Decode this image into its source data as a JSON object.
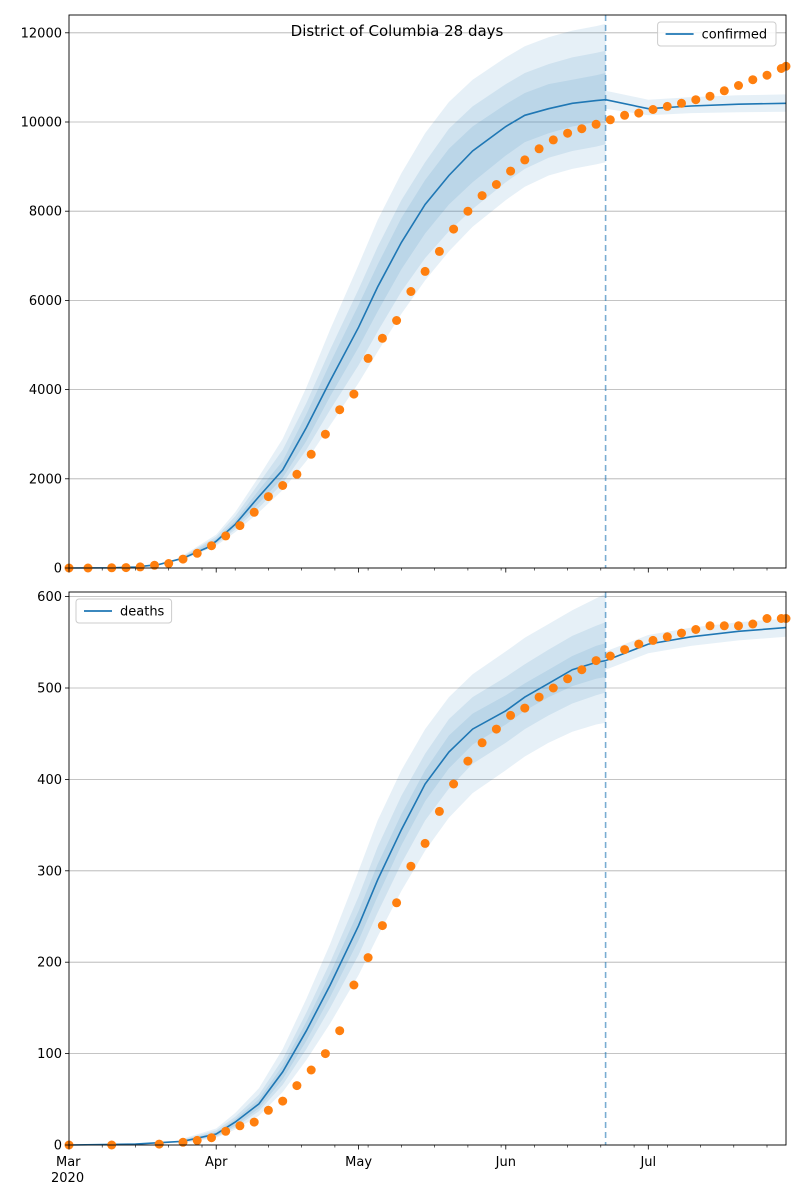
{
  "figure": {
    "suptitle": "District of Columbia 28 days"
  },
  "colors": {
    "model_line": "#1f77b4",
    "observed_points": "#ff7f0e",
    "band_fill": "#1f77b4",
    "grid": "#b0b0b0",
    "forecast_start_line": "#1f77b4"
  },
  "chart_data": [
    {
      "type": "line",
      "name": "confirmed-panel",
      "legend": {
        "entries": [
          "confirmed"
        ],
        "placement": "top-right"
      },
      "x_range": [
        "2020-03-01",
        "2020-07-30"
      ],
      "ylim": [
        0,
        12400
      ],
      "yticks": [
        0,
        2000,
        4000,
        6000,
        8000,
        10000,
        12000
      ],
      "grid": "horizontal",
      "forecast_start": "2020-06-22",
      "model_line": {
        "name": "confirmed",
        "x": [
          "2020-03-01",
          "2020-03-10",
          "2020-03-15",
          "2020-03-20",
          "2020-03-25",
          "2020-03-30",
          "2020-04-01",
          "2020-04-05",
          "2020-04-10",
          "2020-04-15",
          "2020-04-20",
          "2020-04-25",
          "2020-05-01",
          "2020-05-05",
          "2020-05-10",
          "2020-05-15",
          "2020-05-20",
          "2020-05-25",
          "2020-06-01",
          "2020-06-05",
          "2020-06-10",
          "2020-06-15",
          "2020-06-20",
          "2020-06-22",
          "2020-07-01",
          "2020-07-10",
          "2020-07-20",
          "2020-07-30"
        ],
        "y": [
          0,
          5,
          20,
          80,
          220,
          450,
          600,
          980,
          1600,
          2200,
          3150,
          4200,
          5400,
          6300,
          7300,
          8150,
          8800,
          9350,
          9900,
          10150,
          10300,
          10420,
          10480,
          10500,
          10300,
          10360,
          10400,
          10420
        ]
      },
      "bands": [
        {
          "x": [
            "2020-03-25",
            "2020-04-01",
            "2020-04-05",
            "2020-04-10",
            "2020-04-15",
            "2020-04-20",
            "2020-04-25",
            "2020-05-01",
            "2020-05-05",
            "2020-05-10",
            "2020-05-15",
            "2020-05-20",
            "2020-05-25",
            "2020-06-01",
            "2020-06-05",
            "2020-06-10",
            "2020-06-15",
            "2020-06-20",
            "2020-06-22"
          ],
          "lower": [
            180,
            500,
            800,
            1250,
            1750,
            2400,
            3200,
            4150,
            4850,
            5700,
            6450,
            7100,
            7650,
            8250,
            8550,
            8800,
            8950,
            9050,
            9100
          ],
          "upper": [
            280,
            750,
            1250,
            2050,
            2900,
            4050,
            5350,
            6800,
            7800,
            8850,
            9750,
            10450,
            10950,
            11450,
            11700,
            11900,
            12050,
            12150,
            12200
          ]
        },
        {
          "x": [
            "2020-03-25",
            "2020-04-01",
            "2020-04-05",
            "2020-04-10",
            "2020-04-15",
            "2020-04-20",
            "2020-04-25",
            "2020-05-01",
            "2020-05-05",
            "2020-05-10",
            "2020-05-15",
            "2020-05-20",
            "2020-05-25",
            "2020-06-01",
            "2020-06-05",
            "2020-06-10",
            "2020-06-15",
            "2020-06-20",
            "2020-06-22"
          ],
          "lower": [
            195,
            530,
            860,
            1350,
            1900,
            2650,
            3550,
            4550,
            5300,
            6200,
            6950,
            7550,
            8050,
            8650,
            8950,
            9200,
            9350,
            9450,
            9500
          ],
          "upper": [
            260,
            700,
            1160,
            1900,
            2650,
            3700,
            4900,
            6250,
            7200,
            8250,
            9100,
            9850,
            10350,
            10850,
            11100,
            11300,
            11450,
            11550,
            11600
          ]
        },
        {
          "x": [
            "2020-03-25",
            "2020-04-01",
            "2020-04-05",
            "2020-04-10",
            "2020-04-15",
            "2020-04-20",
            "2020-04-25",
            "2020-05-01",
            "2020-05-05",
            "2020-05-10",
            "2020-05-15",
            "2020-05-20",
            "2020-05-25",
            "2020-06-01",
            "2020-06-05",
            "2020-06-10",
            "2020-06-15",
            "2020-06-20",
            "2020-06-22"
          ],
          "lower": [
            205,
            560,
            910,
            1450,
            2020,
            2850,
            3850,
            4950,
            5750,
            6700,
            7500,
            8150,
            8650,
            9250,
            9550,
            9750,
            9900,
            10000,
            10050
          ],
          "upper": [
            240,
            650,
            1060,
            1750,
            2400,
            3450,
            4600,
            5900,
            6800,
            7850,
            8700,
            9400,
            9900,
            10400,
            10650,
            10850,
            10950,
            11050,
            11100
          ]
        },
        {
          "x": [
            "2020-06-22",
            "2020-07-01",
            "2020-07-10",
            "2020-07-20",
            "2020-07-30"
          ],
          "lower": [
            10300,
            10150,
            10200,
            10220,
            10230
          ],
          "upper": [
            10700,
            10500,
            10560,
            10600,
            10620
          ]
        }
      ],
      "observed": {
        "x": [
          "2020-03-01",
          "2020-03-05",
          "2020-03-10",
          "2020-03-13",
          "2020-03-16",
          "2020-03-19",
          "2020-03-22",
          "2020-03-25",
          "2020-03-28",
          "2020-03-31",
          "2020-04-03",
          "2020-04-06",
          "2020-04-09",
          "2020-04-12",
          "2020-04-15",
          "2020-04-18",
          "2020-04-21",
          "2020-04-24",
          "2020-04-27",
          "2020-04-30",
          "2020-05-03",
          "2020-05-06",
          "2020-05-09",
          "2020-05-12",
          "2020-05-15",
          "2020-05-18",
          "2020-05-21",
          "2020-05-24",
          "2020-05-27",
          "2020-05-30",
          "2020-06-02",
          "2020-06-05",
          "2020-06-08",
          "2020-06-11",
          "2020-06-14",
          "2020-06-17",
          "2020-06-20",
          "2020-06-23",
          "2020-06-26",
          "2020-06-29",
          "2020-07-02",
          "2020-07-05",
          "2020-07-08",
          "2020-07-11",
          "2020-07-14",
          "2020-07-17",
          "2020-07-20",
          "2020-07-23",
          "2020-07-26",
          "2020-07-29",
          "2020-07-30"
        ],
        "y": [
          0,
          0,
          5,
          10,
          25,
          60,
          100,
          200,
          330,
          500,
          720,
          950,
          1250,
          1600,
          1850,
          2100,
          2550,
          3000,
          3550,
          3900,
          4700,
          5150,
          5550,
          6200,
          6650,
          7100,
          7600,
          8000,
          8350,
          8600,
          8900,
          9150,
          9400,
          9600,
          9750,
          9850,
          9950,
          10050,
          10150,
          10200,
          10280,
          10350,
          10420,
          10500,
          10580,
          10700,
          10820,
          10950,
          11050,
          11200,
          11250
        ]
      }
    },
    {
      "type": "line",
      "name": "deaths-panel",
      "legend": {
        "entries": [
          "deaths"
        ],
        "placement": "top-left"
      },
      "x_range": [
        "2020-03-01",
        "2020-07-30"
      ],
      "xticks": [
        "Mar",
        "Apr",
        "May",
        "Jun",
        "Jul"
      ],
      "x_year_label": "2020",
      "ylim": [
        0,
        605
      ],
      "yticks": [
        0,
        100,
        200,
        300,
        400,
        500,
        600
      ],
      "grid": "horizontal",
      "forecast_start": "2020-06-22",
      "model_line": {
        "name": "deaths",
        "x": [
          "2020-03-01",
          "2020-03-15",
          "2020-03-25",
          "2020-04-01",
          "2020-04-05",
          "2020-04-10",
          "2020-04-15",
          "2020-04-20",
          "2020-04-25",
          "2020-05-01",
          "2020-05-05",
          "2020-05-10",
          "2020-05-15",
          "2020-05-20",
          "2020-05-25",
          "2020-06-01",
          "2020-06-05",
          "2020-06-10",
          "2020-06-15",
          "2020-06-20",
          "2020-06-22",
          "2020-07-01",
          "2020-07-10",
          "2020-07-20",
          "2020-07-30"
        ],
        "y": [
          0,
          1,
          4,
          12,
          25,
          45,
          80,
          125,
          175,
          240,
          290,
          345,
          395,
          430,
          455,
          475,
          490,
          505,
          520,
          528,
          530,
          548,
          556,
          562,
          566
        ]
      },
      "bands": [
        {
          "x": [
            "2020-03-25",
            "2020-04-01",
            "2020-04-05",
            "2020-04-10",
            "2020-04-15",
            "2020-04-20",
            "2020-04-25",
            "2020-05-01",
            "2020-05-05",
            "2020-05-10",
            "2020-05-15",
            "2020-05-20",
            "2020-05-25",
            "2020-06-01",
            "2020-06-05",
            "2020-06-10",
            "2020-06-15",
            "2020-06-20",
            "2020-06-22"
          ],
          "lower": [
            2,
            8,
            17,
            32,
            58,
            93,
            133,
            186,
            228,
            278,
            322,
            358,
            385,
            410,
            425,
            440,
            452,
            460,
            462
          ],
          "upper": [
            7,
            18,
            35,
            62,
            105,
            160,
            220,
            300,
            355,
            410,
            455,
            490,
            515,
            540,
            555,
            570,
            585,
            598,
            603
          ]
        },
        {
          "x": [
            "2020-03-25",
            "2020-04-01",
            "2020-04-05",
            "2020-04-10",
            "2020-04-15",
            "2020-04-20",
            "2020-04-25",
            "2020-05-01",
            "2020-05-05",
            "2020-05-10",
            "2020-05-15",
            "2020-05-20",
            "2020-05-25",
            "2020-06-01",
            "2020-06-05",
            "2020-06-10",
            "2020-06-15",
            "2020-06-20",
            "2020-06-22"
          ],
          "lower": [
            3,
            9,
            19,
            37,
            66,
            105,
            150,
            208,
            254,
            308,
            355,
            390,
            417,
            440,
            455,
            470,
            483,
            492,
            495
          ],
          "upper": [
            6,
            16,
            31,
            55,
            94,
            145,
            200,
            272,
            326,
            382,
            428,
            466,
            490,
            512,
            526,
            542,
            557,
            568,
            572
          ]
        },
        {
          "x": [
            "2020-03-25",
            "2020-04-01",
            "2020-04-05",
            "2020-04-10",
            "2020-04-15",
            "2020-04-20",
            "2020-04-25",
            "2020-05-01",
            "2020-05-05",
            "2020-05-10",
            "2020-05-15",
            "2020-05-20",
            "2020-05-25",
            "2020-06-01",
            "2020-06-05",
            "2020-06-10",
            "2020-06-15",
            "2020-06-20",
            "2020-06-22"
          ],
          "lower": [
            3.5,
            10,
            21,
            40,
            72,
            114,
            162,
            224,
            272,
            328,
            376,
            412,
            438,
            460,
            475,
            490,
            502,
            510,
            512
          ],
          "upper": [
            5,
            14,
            28,
            50,
            87,
            135,
            188,
            256,
            307,
            362,
            410,
            448,
            472,
            492,
            505,
            520,
            535,
            546,
            549
          ]
        },
        {
          "x": [
            "2020-06-22",
            "2020-07-01",
            "2020-07-10",
            "2020-07-20",
            "2020-07-30"
          ],
          "lower": [
            520,
            538,
            546,
            552,
            556
          ],
          "upper": [
            540,
            558,
            566,
            572,
            576
          ]
        }
      ],
      "observed": {
        "x": [
          "2020-03-01",
          "2020-03-10",
          "2020-03-20",
          "2020-03-25",
          "2020-03-28",
          "2020-03-31",
          "2020-04-03",
          "2020-04-06",
          "2020-04-09",
          "2020-04-12",
          "2020-04-15",
          "2020-04-18",
          "2020-04-21",
          "2020-04-24",
          "2020-04-27",
          "2020-04-30",
          "2020-05-03",
          "2020-05-06",
          "2020-05-09",
          "2020-05-12",
          "2020-05-15",
          "2020-05-18",
          "2020-05-21",
          "2020-05-24",
          "2020-05-27",
          "2020-05-30",
          "2020-06-02",
          "2020-06-05",
          "2020-06-08",
          "2020-06-11",
          "2020-06-14",
          "2020-06-17",
          "2020-06-20",
          "2020-06-23",
          "2020-06-26",
          "2020-06-29",
          "2020-07-02",
          "2020-07-05",
          "2020-07-08",
          "2020-07-11",
          "2020-07-14",
          "2020-07-17",
          "2020-07-20",
          "2020-07-23",
          "2020-07-26",
          "2020-07-29",
          "2020-07-30"
        ],
        "y": [
          0,
          0,
          1,
          3,
          5,
          8,
          15,
          21,
          25,
          38,
          48,
          65,
          82,
          100,
          125,
          175,
          205,
          240,
          265,
          305,
          330,
          365,
          395,
          420,
          440,
          455,
          470,
          478,
          490,
          500,
          510,
          520,
          530,
          535,
          542,
          548,
          552,
          556,
          560,
          564,
          568,
          568,
          568,
          570,
          576,
          576,
          576
        ]
      }
    }
  ]
}
